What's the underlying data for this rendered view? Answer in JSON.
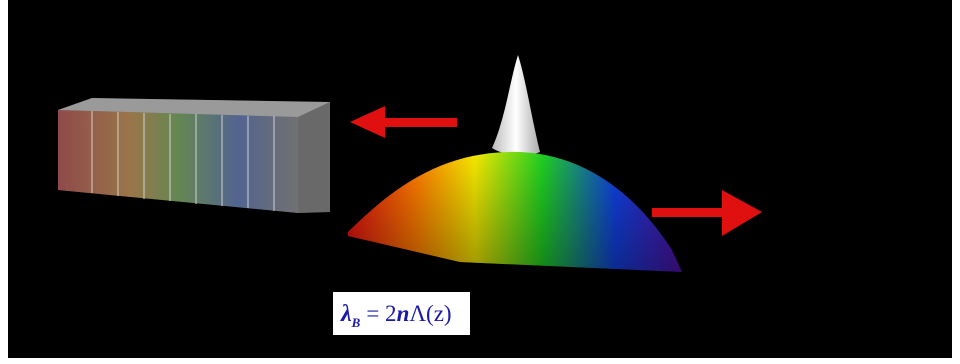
{
  "equation": {
    "symbol": "λ",
    "subscript": "B",
    "equals": "= 2",
    "index": "n",
    "period": "Λ(z)"
  }
}
